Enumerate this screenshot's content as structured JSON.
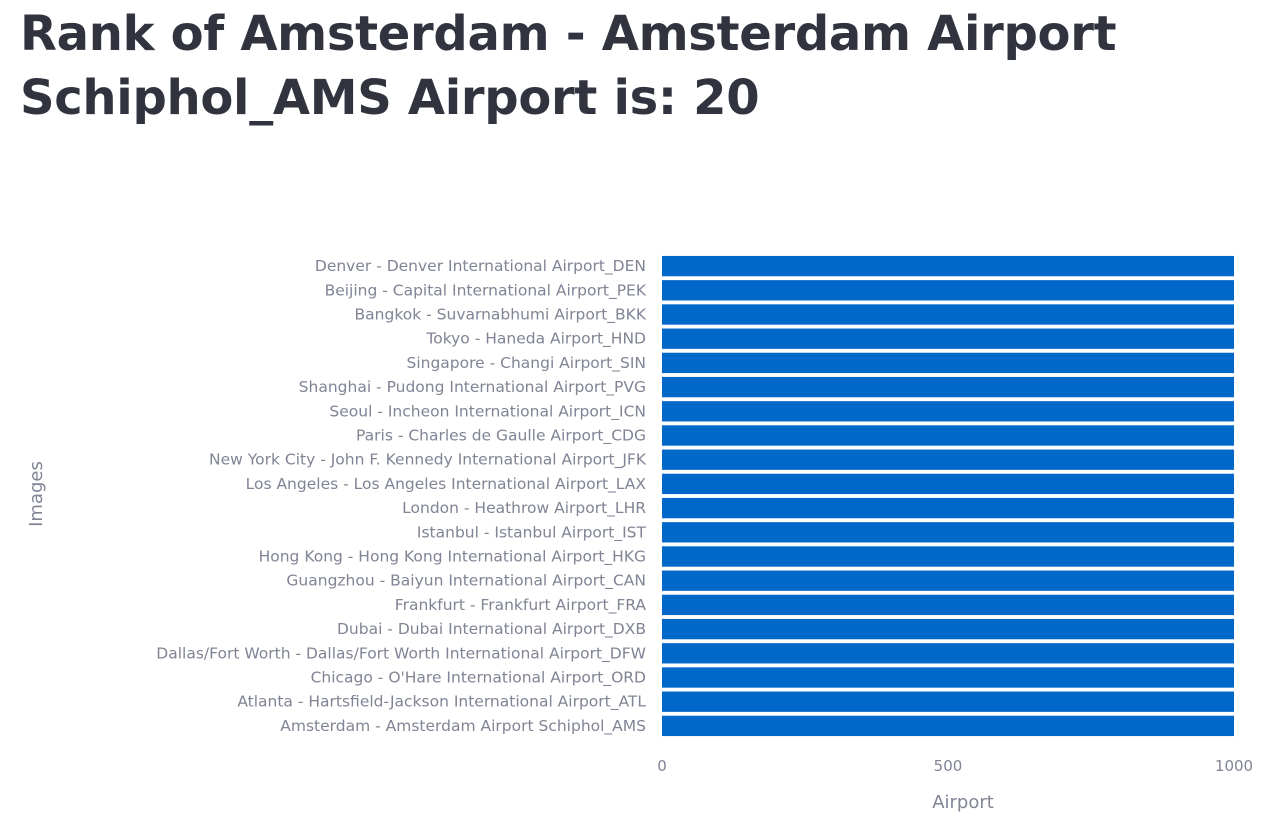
{
  "page": {
    "title": "Rank of Amsterdam - Amsterdam Airport Schiphol_AMS Airport is: 20"
  },
  "chart_data": {
    "type": "bar",
    "orientation": "horizontal",
    "xlabel": "Airport",
    "ylabel": "Images",
    "xlim": [
      0,
      1000
    ],
    "xticks": [
      0,
      500,
      1000
    ],
    "grid": false,
    "bar_color": "#0068c9",
    "categories": [
      "Denver - Denver International Airport_DEN",
      "Beijing - Capital International Airport_PEK",
      "Bangkok - Suvarnabhumi Airport_BKK",
      "Tokyo - Haneda Airport_HND",
      "Singapore - Changi Airport_SIN",
      "Shanghai - Pudong International Airport_PVG",
      "Seoul - Incheon International Airport_ICN",
      "Paris - Charles de Gaulle Airport_CDG",
      "New York City - John F. Kennedy International Airport_JFK",
      "Los Angeles - Los Angeles International Airport_LAX",
      "London - Heathrow Airport_LHR",
      "Istanbul - Istanbul Airport_IST",
      "Hong Kong - Hong Kong International Airport_HKG",
      "Guangzhou - Baiyun International Airport_CAN",
      "Frankfurt - Frankfurt Airport_FRA",
      "Dubai - Dubai International Airport_DXB",
      "Dallas/Fort Worth - Dallas/Fort Worth International Airport_DFW",
      "Chicago - O'Hare International Airport_ORD",
      "Atlanta - Hartsfield-Jackson International Airport_ATL",
      "Amsterdam - Amsterdam Airport Schiphol_AMS"
    ],
    "values": [
      1000,
      1000,
      1000,
      1000,
      1000,
      1000,
      1000,
      1000,
      1000,
      1000,
      1000,
      1000,
      1000,
      1000,
      1000,
      1000,
      1000,
      1000,
      1000,
      1000
    ]
  }
}
